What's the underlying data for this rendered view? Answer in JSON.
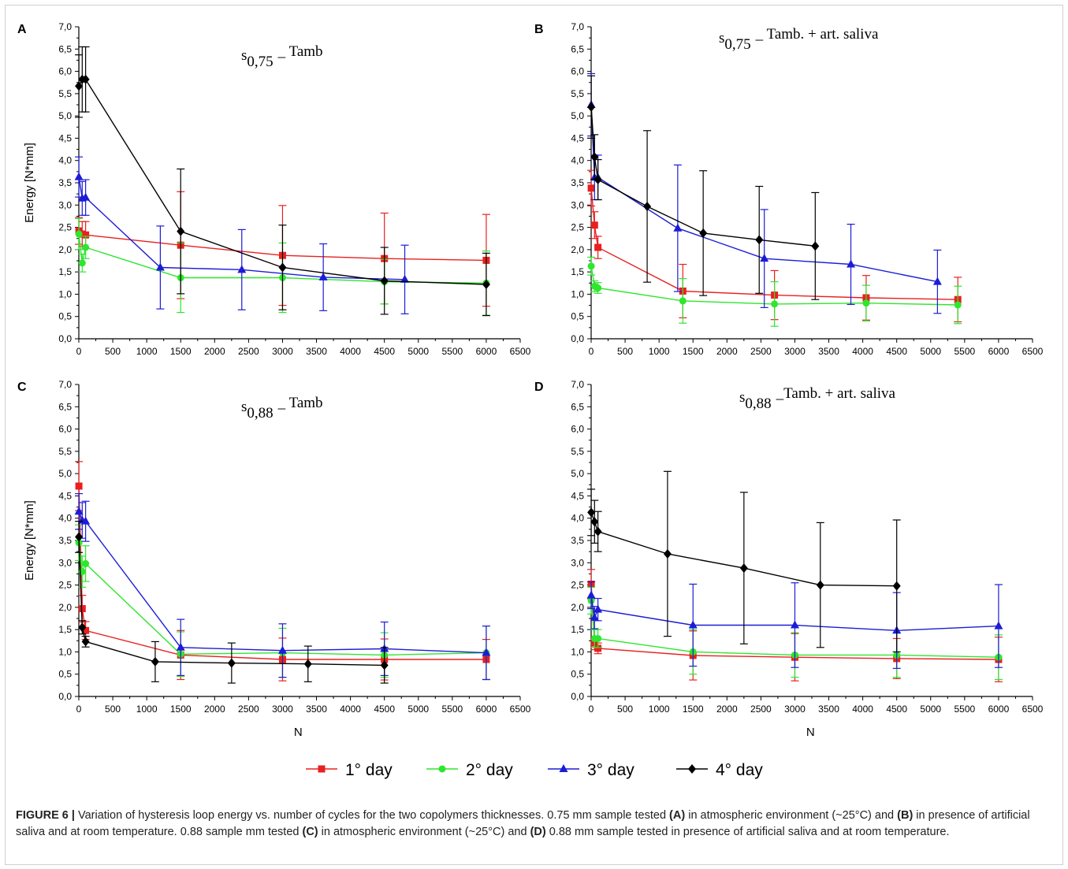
{
  "figure": {
    "caption_label": "FIGURE 6 |",
    "caption_parts": [
      {
        "t": " Variation of hysteresis loop energy vs. number of cycles for the two copolymers thicknesses. 0.75 mm sample tested ",
        "b": false
      },
      {
        "t": "(A)",
        "b": true
      },
      {
        "t": " in atmospheric environment (~25°C) and ",
        "b": false
      },
      {
        "t": "(B)",
        "b": true
      },
      {
        "t": " in presence of artificial saliva and at room temperature. 0.88 sample mm tested ",
        "b": false
      },
      {
        "t": "(C)",
        "b": true
      },
      {
        "t": " in atmospheric environment (~25°C) and ",
        "b": false
      },
      {
        "t": "(D)",
        "b": true
      },
      {
        "t": " 0.88 mm sample tested in presence of artificial saliva and at room temperature.",
        "b": false
      }
    ]
  },
  "legend": {
    "placement": "bottom-center",
    "items": [
      {
        "name": "1° day",
        "color": "#e8201f",
        "marker": "square"
      },
      {
        "name": "2° day",
        "color": "#2ee62e",
        "marker": "circle"
      },
      {
        "name": "3° day",
        "color": "#1c1cd6",
        "marker": "triangle"
      },
      {
        "name": "4° day",
        "color": "#000000",
        "marker": "diamond"
      }
    ]
  },
  "chart_data": [
    {
      "type": "line",
      "panel": "A",
      "title": "s0,75 _ Tamb",
      "title_sub": "0,75",
      "title_main": "_ Tamb",
      "xlabel": "",
      "ylabel": "Energy [N*mm]",
      "xlim": [
        0,
        6500
      ],
      "ylim": [
        0,
        7
      ],
      "xticks": [
        "0",
        "500",
        "1000",
        "1500",
        "2000",
        "2500",
        "3000",
        "3500",
        "4000",
        "4500",
        "5000",
        "5500",
        "6000",
        "6500"
      ],
      "yticks": [
        "0,0",
        "0,5",
        "1,0",
        "1,5",
        "2,0",
        "2,5",
        "3,0",
        "3,5",
        "4,0",
        "4,5",
        "5,0",
        "5,5",
        "6,0",
        "6,5",
        "7,0"
      ],
      "series": [
        {
          "name": "1° day",
          "x": [
            1,
            50,
            100,
            1500,
            3000,
            4500,
            6000
          ],
          "y": [
            2.42,
            2.35,
            2.33,
            2.1,
            1.87,
            1.8,
            1.76
          ],
          "err": [
            0.3,
            0.28,
            0.3,
            1.2,
            1.12,
            1.02,
            1.03
          ]
        },
        {
          "name": "2° day",
          "x": [
            1,
            50,
            100,
            1500,
            3000,
            4500,
            6000
          ],
          "y": [
            2.35,
            1.7,
            2.05,
            1.37,
            1.37,
            1.28,
            1.25
          ],
          "err": [
            0.35,
            0.2,
            0.25,
            0.78,
            0.78,
            0.5,
            0.72
          ]
        },
        {
          "name": "3° day",
          "x": [
            1,
            50,
            100,
            1200,
            2400,
            3600,
            4800
          ],
          "y": [
            3.63,
            3.15,
            3.17,
            1.6,
            1.55,
            1.38,
            1.33
          ],
          "err": [
            0.45,
            0.38,
            0.4,
            0.93,
            0.9,
            0.75,
            0.77
          ]
        },
        {
          "name": "4° day",
          "x": [
            1,
            50,
            100,
            1500,
            3000,
            4500,
            6000
          ],
          "y": [
            5.67,
            5.82,
            5.82,
            2.41,
            1.6,
            1.3,
            1.22
          ],
          "err": [
            0.7,
            0.73,
            0.73,
            1.4,
            0.95,
            0.75,
            0.7
          ]
        }
      ]
    },
    {
      "type": "line",
      "panel": "B",
      "title": "s0,75 _ Tamb. + art. saliva",
      "title_sub": "0,75",
      "title_main": "_ Tamb. + art. saliva",
      "xlabel": "",
      "ylabel": "",
      "xlim": [
        0,
        6500
      ],
      "ylim": [
        0,
        7
      ],
      "xticks": [
        "0",
        "500",
        "1000",
        "1500",
        "2000",
        "2500",
        "3000",
        "3500",
        "4000",
        "4500",
        "5000",
        "5500",
        "6000",
        "6500"
      ],
      "yticks": [
        "0,0",
        "0,5",
        "1,0",
        "1,5",
        "2,0",
        "2,5",
        "3,0",
        "3,5",
        "4,0",
        "4,5",
        "5,0",
        "5,5",
        "6,0",
        "6,5",
        "7,0"
      ],
      "series": [
        {
          "name": "1° day",
          "x": [
            1,
            50,
            100,
            1350,
            2700,
            4050,
            5400
          ],
          "y": [
            3.38,
            2.55,
            2.05,
            1.07,
            0.98,
            0.92,
            0.88
          ],
          "err": [
            0.4,
            0.3,
            0.25,
            0.6,
            0.55,
            0.5,
            0.5
          ]
        },
        {
          "name": "2° day",
          "x": [
            1,
            50,
            100,
            1350,
            2700,
            4050,
            5400
          ],
          "y": [
            1.63,
            1.18,
            1.14,
            0.85,
            0.78,
            0.8,
            0.76
          ],
          "err": [
            0.2,
            0.12,
            0.12,
            0.5,
            0.5,
            0.4,
            0.42
          ]
        },
        {
          "name": "3° day",
          "x": [
            1,
            50,
            100,
            1275,
            2550,
            3825,
            5100
          ],
          "y": [
            5.25,
            3.62,
            3.62,
            2.48,
            1.8,
            1.67,
            1.28
          ],
          "err": [
            0.7,
            0.5,
            0.5,
            1.42,
            1.1,
            0.9,
            0.71
          ]
        },
        {
          "name": "4° day",
          "x": [
            1,
            50,
            100,
            825,
            1650,
            2475,
            3300
          ],
          "y": [
            5.2,
            4.08,
            3.57,
            2.97,
            2.37,
            2.22,
            2.08
          ],
          "err": [
            0.7,
            0.5,
            0.45,
            1.7,
            1.4,
            1.2,
            1.2
          ]
        }
      ]
    },
    {
      "type": "line",
      "panel": "C",
      "title": "s0,88 _ Tamb",
      "title_sub": "0,88",
      "title_main": "_ Tamb",
      "xlabel": "N",
      "ylabel": "Energy [N*mm]",
      "xlim": [
        0,
        6500
      ],
      "ylim": [
        0,
        7
      ],
      "xticks": [
        "0",
        "500",
        "1000",
        "1500",
        "2000",
        "2500",
        "3000",
        "3500",
        "4000",
        "4500",
        "5000",
        "5500",
        "6000",
        "6500"
      ],
      "yticks": [
        "0,0",
        "0,5",
        "1,0",
        "1,5",
        "2,0",
        "2,5",
        "3,0",
        "3,5",
        "4,0",
        "4,5",
        "5,0",
        "5,5",
        "6,0",
        "6,5",
        "7,0"
      ],
      "series": [
        {
          "name": "1° day",
          "x": [
            1,
            50,
            100,
            1500,
            3000,
            4500,
            6000
          ],
          "y": [
            4.72,
            1.97,
            1.48,
            0.93,
            0.83,
            0.83,
            0.83
          ],
          "err": [
            0.55,
            0.3,
            0.2,
            0.55,
            0.48,
            0.46,
            0.45
          ]
        },
        {
          "name": "2° day",
          "x": [
            1,
            50,
            100,
            1500,
            3000,
            4500,
            6000
          ],
          "y": [
            3.45,
            2.8,
            2.98,
            0.95,
            0.98,
            0.93,
            0.98
          ],
          "err": [
            0.4,
            0.35,
            0.4,
            0.5,
            0.55,
            0.5,
            0.6
          ]
        },
        {
          "name": "3° day",
          "x": [
            1,
            50,
            100,
            1500,
            3000,
            4500,
            6000
          ],
          "y": [
            4.15,
            3.95,
            3.93,
            1.1,
            1.03,
            1.07,
            0.98
          ],
          "err": [
            0.4,
            0.4,
            0.45,
            0.63,
            0.6,
            0.6,
            0.6
          ]
        },
        {
          "name": "4° day",
          "x": [
            1,
            50,
            100,
            1125,
            2250,
            3375,
            4500
          ],
          "y": [
            3.58,
            1.55,
            1.23,
            0.78,
            0.75,
            0.73,
            0.7
          ],
          "err": [
            0.35,
            0.15,
            0.12,
            0.45,
            0.45,
            0.4,
            0.4
          ]
        }
      ]
    },
    {
      "type": "line",
      "panel": "D",
      "title": "s0,88 _Tamb. + art. saliva",
      "title_sub": "0,88",
      "title_main": "_Tamb. + art. saliva",
      "xlabel": "N",
      "ylabel": "",
      "xlim": [
        0,
        6500
      ],
      "ylim": [
        0,
        7
      ],
      "xticks": [
        "0",
        "500",
        "1000",
        "1500",
        "2000",
        "2500",
        "3000",
        "3500",
        "4000",
        "4500",
        "5000",
        "5500",
        "6000",
        "6500"
      ],
      "yticks": [
        "0,0",
        "0,5",
        "1,0",
        "1,5",
        "2,0",
        "2,5",
        "3,0",
        "3,5",
        "4,0",
        "4,5",
        "5,0",
        "5,5",
        "6,0",
        "6,5",
        "7,0"
      ],
      "series": [
        {
          "name": "1° day",
          "x": [
            1,
            50,
            100,
            1500,
            3000,
            4500,
            6000
          ],
          "y": [
            2.52,
            1.2,
            1.08,
            0.92,
            0.88,
            0.85,
            0.83
          ],
          "err": [
            0.33,
            0.15,
            0.12,
            0.55,
            0.53,
            0.45,
            0.5
          ]
        },
        {
          "name": "2° day",
          "x": [
            1,
            50,
            100,
            1500,
            3000,
            4500,
            6000
          ],
          "y": [
            2.15,
            1.3,
            1.3,
            1.0,
            0.93,
            0.93,
            0.88
          ],
          "err": [
            0.3,
            0.2,
            0.2,
            0.5,
            0.5,
            0.5,
            0.5
          ]
        },
        {
          "name": "3° day",
          "x": [
            1,
            50,
            100,
            1500,
            3000,
            4500,
            6000
          ],
          "y": [
            2.27,
            1.77,
            1.95,
            1.6,
            1.6,
            1.48,
            1.58
          ],
          "err": [
            0.3,
            0.25,
            0.25,
            0.92,
            0.95,
            0.85,
            0.93
          ]
        },
        {
          "name": "4° day",
          "x": [
            1,
            50,
            100,
            1125,
            2250,
            3375,
            4500
          ],
          "y": [
            4.13,
            3.92,
            3.7,
            3.2,
            2.88,
            2.5,
            2.48
          ],
          "err": [
            0.52,
            0.48,
            0.45,
            1.85,
            1.7,
            1.4,
            1.48
          ]
        }
      ]
    }
  ]
}
